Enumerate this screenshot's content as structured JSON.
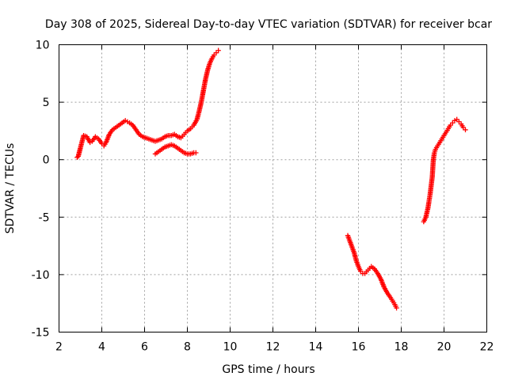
{
  "chart_data": {
    "type": "scatter",
    "title": "Day 308 of 2025, Sidereal Day-to-day VTEC variation (SDTVAR) for receiver bcar",
    "xlabel": "GPS time / hours",
    "ylabel": "SDTVAR / TECUs",
    "xlim": [
      2,
      22
    ],
    "ylim": [
      -15,
      10
    ],
    "xticks": [
      2,
      4,
      6,
      8,
      10,
      12,
      14,
      16,
      18,
      20,
      22
    ],
    "yticks": [
      -15,
      -10,
      -5,
      0,
      5,
      10
    ],
    "xtick_labels": [
      "2",
      "4",
      "6",
      "8",
      "10",
      "12",
      "14",
      "16",
      "18",
      "20",
      "22"
    ],
    "ytick_labels": [
      "-15",
      "-10",
      "-5",
      "0",
      "5",
      "10"
    ],
    "grid": true,
    "legend": "none",
    "marker": "plus",
    "color": "#ff0000",
    "series": [
      {
        "x": [
          2.85,
          2.9,
          3.15,
          3.3,
          3.45,
          3.55,
          3.7,
          3.85,
          4.0,
          4.1,
          4.2,
          4.35,
          4.5,
          4.65,
          4.8,
          4.95,
          5.1,
          5.2,
          5.3,
          5.45,
          5.6,
          5.75,
          5.9,
          6.05,
          6.2,
          6.35,
          6.5,
          6.65,
          6.8,
          6.95,
          7.1,
          7.25,
          7.4,
          7.55,
          7.7,
          7.85,
          8.0,
          8.15,
          8.3,
          8.45,
          8.55,
          8.65,
          8.75,
          8.85,
          8.95,
          9.05,
          9.15,
          9.25,
          9.35,
          9.45
        ],
        "y": [
          0.2,
          0.3,
          2.1,
          2.0,
          1.5,
          1.6,
          2.0,
          1.8,
          1.4,
          1.2,
          1.5,
          2.2,
          2.6,
          2.8,
          3.0,
          3.2,
          3.4,
          3.3,
          3.2,
          3.0,
          2.6,
          2.2,
          2.0,
          1.9,
          1.8,
          1.7,
          1.6,
          1.7,
          1.8,
          2.0,
          2.1,
          2.1,
          2.2,
          2.0,
          1.9,
          2.2,
          2.5,
          2.7,
          3.0,
          3.5,
          4.2,
          5.0,
          6.0,
          7.0,
          7.8,
          8.4,
          8.8,
          9.1,
          9.3,
          9.5
        ]
      },
      {
        "x": [
          6.5,
          6.65,
          6.8,
          6.95,
          7.1,
          7.25,
          7.4,
          7.55,
          7.7,
          7.85,
          8.0,
          8.15,
          8.3,
          8.4
        ],
        "y": [
          0.5,
          0.7,
          0.9,
          1.1,
          1.2,
          1.3,
          1.2,
          1.0,
          0.8,
          0.6,
          0.5,
          0.5,
          0.6,
          0.6
        ]
      },
      {
        "x": [
          15.5,
          15.6,
          15.7,
          15.8,
          15.9,
          16.0,
          16.1,
          16.2,
          16.3,
          16.45,
          16.6,
          16.75,
          16.9,
          17.05,
          17.2,
          17.35,
          17.5,
          17.6,
          17.7,
          17.78
        ],
        "y": [
          -6.6,
          -7.1,
          -7.6,
          -8.1,
          -8.8,
          -9.3,
          -9.7,
          -9.9,
          -9.9,
          -9.6,
          -9.3,
          -9.5,
          -9.9,
          -10.4,
          -11.1,
          -11.6,
          -12.0,
          -12.3,
          -12.6,
          -12.9
        ]
      },
      {
        "x": [
          19.05,
          19.15,
          19.25,
          19.35,
          19.45,
          19.5,
          19.55,
          19.6,
          19.7,
          19.8,
          19.9,
          20.0,
          20.1,
          20.2,
          20.3,
          20.4,
          20.5,
          20.6,
          20.7,
          20.8,
          20.9,
          21.0
        ],
        "y": [
          -5.4,
          -5.0,
          -4.2,
          -3.0,
          -1.5,
          0.0,
          0.6,
          0.9,
          1.2,
          1.5,
          1.8,
          2.1,
          2.4,
          2.7,
          3.0,
          3.2,
          3.4,
          3.5,
          3.3,
          3.1,
          2.8,
          2.6
        ]
      }
    ]
  }
}
